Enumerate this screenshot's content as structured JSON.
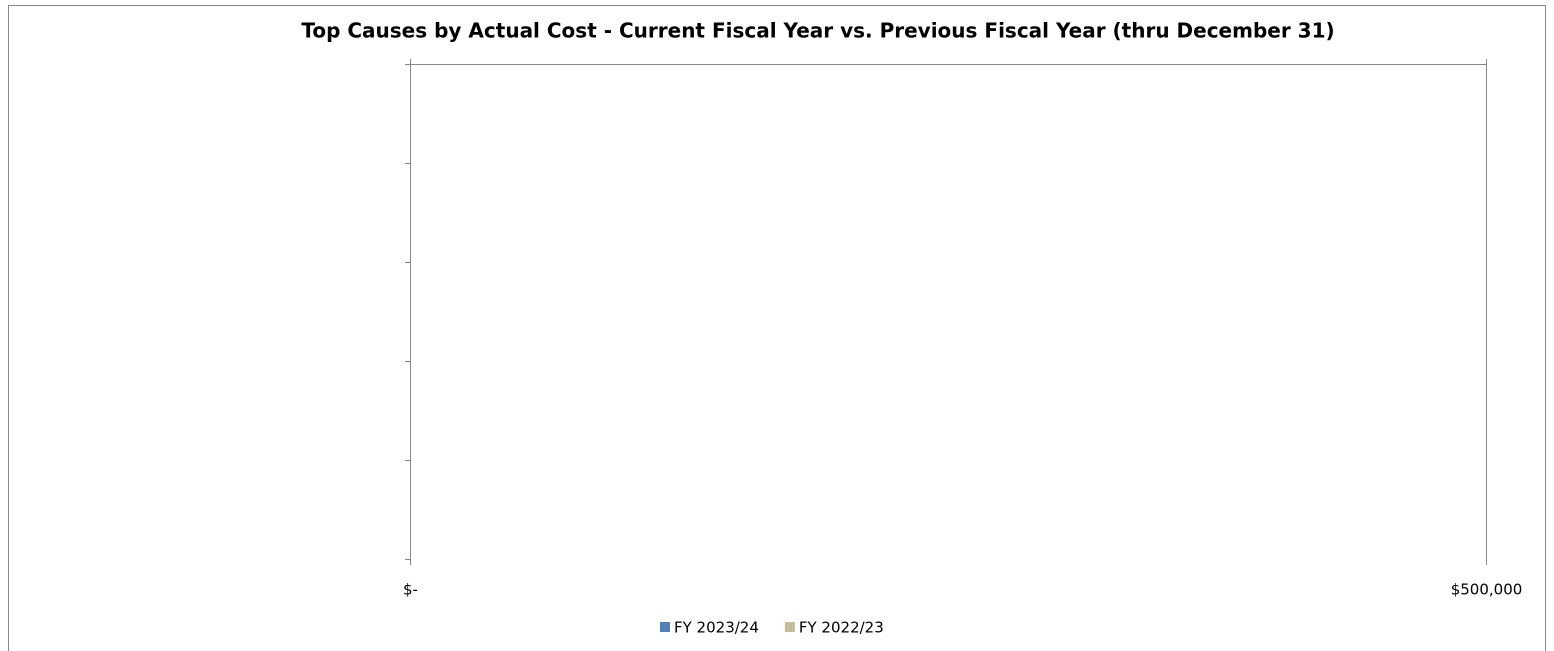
{
  "chart_data": {
    "type": "barh",
    "title": "Top Causes by Actual Cost - Current Fiscal Year vs. Previous Fiscal Year (thru December 31)",
    "categories": [
      null,
      null,
      null,
      null,
      null
    ],
    "series": [
      {
        "name": "FY 2023/24",
        "color": "#4f81bd",
        "values": [
          null,
          null,
          null,
          null,
          null
        ]
      },
      {
        "name": "FY 2022/23",
        "color": "#c4bd97",
        "values": [
          null,
          null,
          null,
          null,
          null
        ]
      }
    ],
    "xlim": [
      0,
      500000
    ],
    "xticks": [
      {
        "value": 0,
        "label": "$-"
      },
      {
        "value": 500000,
        "label": "$500,000"
      }
    ],
    "grid": true,
    "legend": "bottom"
  }
}
